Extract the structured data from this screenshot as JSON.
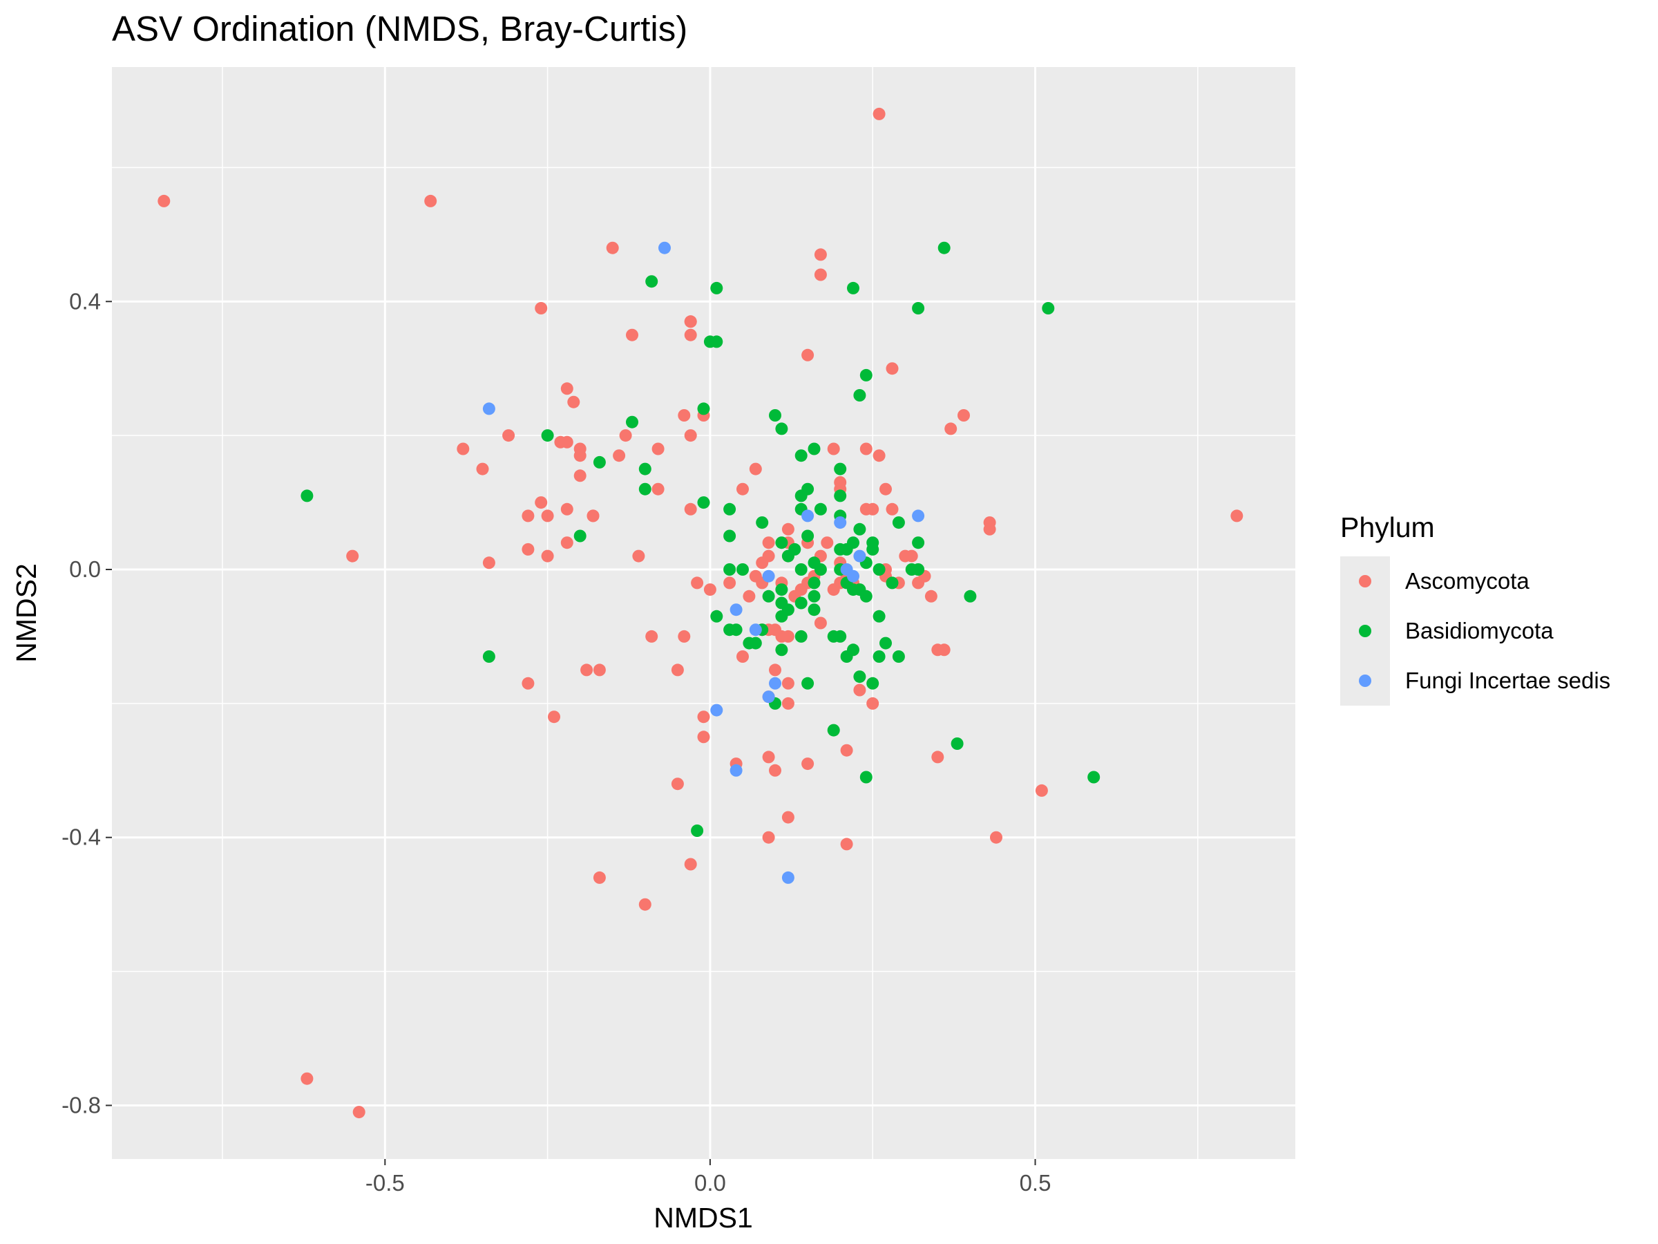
{
  "chart_data": {
    "type": "scatter",
    "title": "ASV Ordination (NMDS, Bray-Curtis)",
    "xlabel": "NMDS1",
    "ylabel": "NMDS2",
    "xlim": [
      -0.92,
      0.9
    ],
    "ylim": [
      -0.88,
      0.75
    ],
    "x_ticks": [
      -0.5,
      0.0,
      0.5
    ],
    "x_tick_labels": [
      "-0.5",
      "0.0",
      "0.5"
    ],
    "y_ticks": [
      -0.8,
      -0.4,
      0.0,
      0.4
    ],
    "y_tick_labels": [
      "-0.8",
      "-0.4",
      "0.0",
      "0.4"
    ],
    "grid": true,
    "legend_position": "right",
    "legend_title": "Phylum",
    "series": [
      {
        "name": "Ascomycota",
        "color": "#F8766D",
        "points": [
          [
            -0.84,
            0.55
          ],
          [
            -0.43,
            0.55
          ],
          [
            0.26,
            0.68
          ],
          [
            -0.15,
            0.48
          ],
          [
            0.17,
            0.47
          ],
          [
            0.17,
            0.44
          ],
          [
            -0.26,
            0.39
          ],
          [
            -0.03,
            0.37
          ],
          [
            -0.03,
            0.37
          ],
          [
            -0.03,
            0.35
          ],
          [
            -0.12,
            0.35
          ],
          [
            0.15,
            0.32
          ],
          [
            0.28,
            0.3
          ],
          [
            -0.22,
            0.27
          ],
          [
            -0.21,
            0.25
          ],
          [
            -0.04,
            0.23
          ],
          [
            -0.01,
            0.23
          ],
          [
            0.39,
            0.23
          ],
          [
            0.37,
            0.21
          ],
          [
            -0.13,
            0.2
          ],
          [
            -0.31,
            0.2
          ],
          [
            -0.03,
            0.2
          ],
          [
            -0.23,
            0.19
          ],
          [
            -0.22,
            0.19
          ],
          [
            -0.2,
            0.18
          ],
          [
            -0.2,
            0.17
          ],
          [
            -0.38,
            0.18
          ],
          [
            -0.14,
            0.17
          ],
          [
            -0.08,
            0.18
          ],
          [
            0.24,
            0.18
          ],
          [
            0.19,
            0.18
          ],
          [
            0.26,
            0.17
          ],
          [
            -0.35,
            0.15
          ],
          [
            -0.2,
            0.14
          ],
          [
            0.07,
            0.15
          ],
          [
            0.2,
            0.13
          ],
          [
            0.27,
            0.12
          ],
          [
            0.2,
            0.12
          ],
          [
            0.05,
            0.12
          ],
          [
            -0.08,
            0.12
          ],
          [
            -0.26,
            0.1
          ],
          [
            -0.03,
            0.09
          ],
          [
            0.24,
            0.09
          ],
          [
            0.28,
            0.09
          ],
          [
            0.25,
            0.09
          ],
          [
            -0.22,
            0.09
          ],
          [
            -0.28,
            0.08
          ],
          [
            -0.25,
            0.08
          ],
          [
            -0.18,
            0.08
          ],
          [
            -0.18,
            0.08
          ],
          [
            0.43,
            0.07
          ],
          [
            0.43,
            0.06
          ],
          [
            0.81,
            0.08
          ],
          [
            0.12,
            0.06
          ],
          [
            0.12,
            0.04
          ],
          [
            -0.22,
            0.04
          ],
          [
            0.09,
            0.04
          ],
          [
            0.15,
            0.04
          ],
          [
            0.18,
            0.04
          ],
          [
            0.09,
            0.02
          ],
          [
            -0.28,
            0.03
          ],
          [
            -0.25,
            0.02
          ],
          [
            -0.55,
            0.02
          ],
          [
            -0.11,
            0.02
          ],
          [
            0.08,
            0.01
          ],
          [
            0.12,
            0.02
          ],
          [
            0.17,
            0.02
          ],
          [
            0.2,
            0.01
          ],
          [
            0.3,
            0.02
          ],
          [
            0.31,
            0.02
          ],
          [
            -0.34,
            0.01
          ],
          [
            0.27,
            0.0
          ],
          [
            0.27,
            -0.01
          ],
          [
            0.32,
            -0.02
          ],
          [
            0.33,
            -0.01
          ],
          [
            0.07,
            -0.01
          ],
          [
            0.16,
            -0.01
          ],
          [
            0.15,
            -0.02
          ],
          [
            0.2,
            -0.02
          ],
          [
            0.21,
            -0.01
          ],
          [
            0.22,
            -0.02
          ],
          [
            0.29,
            -0.02
          ],
          [
            0.03,
            -0.02
          ],
          [
            -0.02,
            -0.02
          ],
          [
            0.0,
            -0.03
          ],
          [
            0.08,
            -0.02
          ],
          [
            0.11,
            -0.02
          ],
          [
            0.19,
            -0.03
          ],
          [
            0.14,
            -0.03
          ],
          [
            0.13,
            -0.04
          ],
          [
            0.06,
            -0.04
          ],
          [
            0.34,
            -0.04
          ],
          [
            0.17,
            -0.08
          ],
          [
            0.08,
            -0.09
          ],
          [
            0.09,
            -0.09
          ],
          [
            0.1,
            -0.09
          ],
          [
            0.12,
            -0.1
          ],
          [
            0.11,
            -0.1
          ],
          [
            -0.09,
            -0.1
          ],
          [
            -0.04,
            -0.1
          ],
          [
            0.35,
            -0.12
          ],
          [
            0.36,
            -0.12
          ],
          [
            0.05,
            -0.13
          ],
          [
            -0.05,
            -0.15
          ],
          [
            -0.19,
            -0.15
          ],
          [
            -0.17,
            -0.15
          ],
          [
            0.1,
            -0.15
          ],
          [
            0.12,
            -0.17
          ],
          [
            -0.28,
            -0.17
          ],
          [
            0.23,
            -0.18
          ],
          [
            0.09,
            -0.19
          ],
          [
            0.12,
            -0.2
          ],
          [
            0.25,
            -0.2
          ],
          [
            -0.24,
            -0.22
          ],
          [
            -0.01,
            -0.22
          ],
          [
            -0.01,
            -0.25
          ],
          [
            0.21,
            -0.27
          ],
          [
            0.35,
            -0.28
          ],
          [
            0.09,
            -0.28
          ],
          [
            0.15,
            -0.29
          ],
          [
            0.04,
            -0.29
          ],
          [
            0.1,
            -0.3
          ],
          [
            -0.05,
            -0.32
          ],
          [
            0.51,
            -0.33
          ],
          [
            0.12,
            -0.37
          ],
          [
            0.44,
            -0.4
          ],
          [
            0.09,
            -0.4
          ],
          [
            0.21,
            -0.41
          ],
          [
            -0.03,
            -0.44
          ],
          [
            -0.17,
            -0.46
          ],
          [
            -0.1,
            -0.5
          ],
          [
            -0.62,
            -0.76
          ],
          [
            -0.54,
            -0.81
          ]
        ]
      },
      {
        "name": "Basidiomycota",
        "color": "#00BA38",
        "points": [
          [
            0.36,
            0.48
          ],
          [
            -0.09,
            0.43
          ],
          [
            0.01,
            0.42
          ],
          [
            0.22,
            0.42
          ],
          [
            0.52,
            0.39
          ],
          [
            0.32,
            0.39
          ],
          [
            0.0,
            0.34
          ],
          [
            0.01,
            0.34
          ],
          [
            0.24,
            0.29
          ],
          [
            0.23,
            0.26
          ],
          [
            -0.01,
            0.24
          ],
          [
            0.1,
            0.23
          ],
          [
            -0.12,
            0.22
          ],
          [
            0.11,
            0.21
          ],
          [
            -0.25,
            0.2
          ],
          [
            0.16,
            0.18
          ],
          [
            0.14,
            0.17
          ],
          [
            -0.17,
            0.16
          ],
          [
            -0.1,
            0.15
          ],
          [
            0.2,
            0.15
          ],
          [
            -0.1,
            0.12
          ],
          [
            0.15,
            0.12
          ],
          [
            0.14,
            0.11
          ],
          [
            0.2,
            0.11
          ],
          [
            -0.62,
            0.11
          ],
          [
            -0.01,
            0.1
          ],
          [
            0.14,
            0.09
          ],
          [
            0.17,
            0.09
          ],
          [
            0.03,
            0.09
          ],
          [
            0.2,
            0.08
          ],
          [
            0.29,
            0.07
          ],
          [
            0.08,
            0.07
          ],
          [
            0.23,
            0.06
          ],
          [
            0.15,
            0.05
          ],
          [
            0.03,
            0.05
          ],
          [
            0.25,
            0.04
          ],
          [
            0.11,
            0.04
          ],
          [
            0.32,
            0.04
          ],
          [
            0.22,
            0.04
          ],
          [
            -0.2,
            0.05
          ],
          [
            0.2,
            0.03
          ],
          [
            0.13,
            0.03
          ],
          [
            0.21,
            0.03
          ],
          [
            0.25,
            0.03
          ],
          [
            0.12,
            0.02
          ],
          [
            0.16,
            0.01
          ],
          [
            0.24,
            0.01
          ],
          [
            0.2,
            0.0
          ],
          [
            0.14,
            0.0
          ],
          [
            0.26,
            0.0
          ],
          [
            0.05,
            0.0
          ],
          [
            0.03,
            0.0
          ],
          [
            0.32,
            0.0
          ],
          [
            0.31,
            0.0
          ],
          [
            0.17,
            0.0
          ],
          [
            0.22,
            -0.03
          ],
          [
            0.21,
            -0.02
          ],
          [
            0.28,
            -0.02
          ],
          [
            0.16,
            -0.02
          ],
          [
            0.11,
            -0.03
          ],
          [
            0.4,
            -0.04
          ],
          [
            0.23,
            -0.03
          ],
          [
            0.09,
            -0.04
          ],
          [
            0.16,
            -0.04
          ],
          [
            0.24,
            -0.04
          ],
          [
            0.14,
            -0.05
          ],
          [
            0.11,
            -0.05
          ],
          [
            0.12,
            -0.06
          ],
          [
            0.16,
            -0.06
          ],
          [
            0.26,
            -0.07
          ],
          [
            0.01,
            -0.07
          ],
          [
            0.11,
            -0.07
          ],
          [
            0.03,
            -0.09
          ],
          [
            0.04,
            -0.09
          ],
          [
            0.08,
            -0.09
          ],
          [
            0.19,
            -0.1
          ],
          [
            0.2,
            -0.1
          ],
          [
            0.27,
            -0.11
          ],
          [
            0.06,
            -0.11
          ],
          [
            0.07,
            -0.11
          ],
          [
            0.14,
            -0.1
          ],
          [
            0.22,
            -0.12
          ],
          [
            0.21,
            -0.13
          ],
          [
            0.11,
            -0.12
          ],
          [
            -0.34,
            -0.13
          ],
          [
            0.26,
            -0.13
          ],
          [
            0.29,
            -0.13
          ],
          [
            0.23,
            -0.16
          ],
          [
            0.15,
            -0.17
          ],
          [
            0.25,
            -0.17
          ],
          [
            0.1,
            -0.2
          ],
          [
            0.19,
            -0.24
          ],
          [
            0.38,
            -0.26
          ],
          [
            0.24,
            -0.31
          ],
          [
            0.59,
            -0.31
          ],
          [
            -0.02,
            -0.39
          ]
        ]
      },
      {
        "name": "Fungi Incertae sedis",
        "color": "#619CFF",
        "points": [
          [
            -0.07,
            0.48
          ],
          [
            -0.34,
            0.24
          ],
          [
            0.32,
            0.08
          ],
          [
            0.15,
            0.08
          ],
          [
            0.2,
            0.07
          ],
          [
            0.23,
            0.02
          ],
          [
            0.21,
            0.0
          ],
          [
            0.22,
            -0.01
          ],
          [
            0.09,
            -0.01
          ],
          [
            0.04,
            -0.06
          ],
          [
            0.07,
            -0.09
          ],
          [
            0.1,
            -0.17
          ],
          [
            0.09,
            -0.19
          ],
          [
            0.01,
            -0.21
          ],
          [
            0.04,
            -0.3
          ],
          [
            0.12,
            -0.46
          ]
        ]
      }
    ]
  }
}
